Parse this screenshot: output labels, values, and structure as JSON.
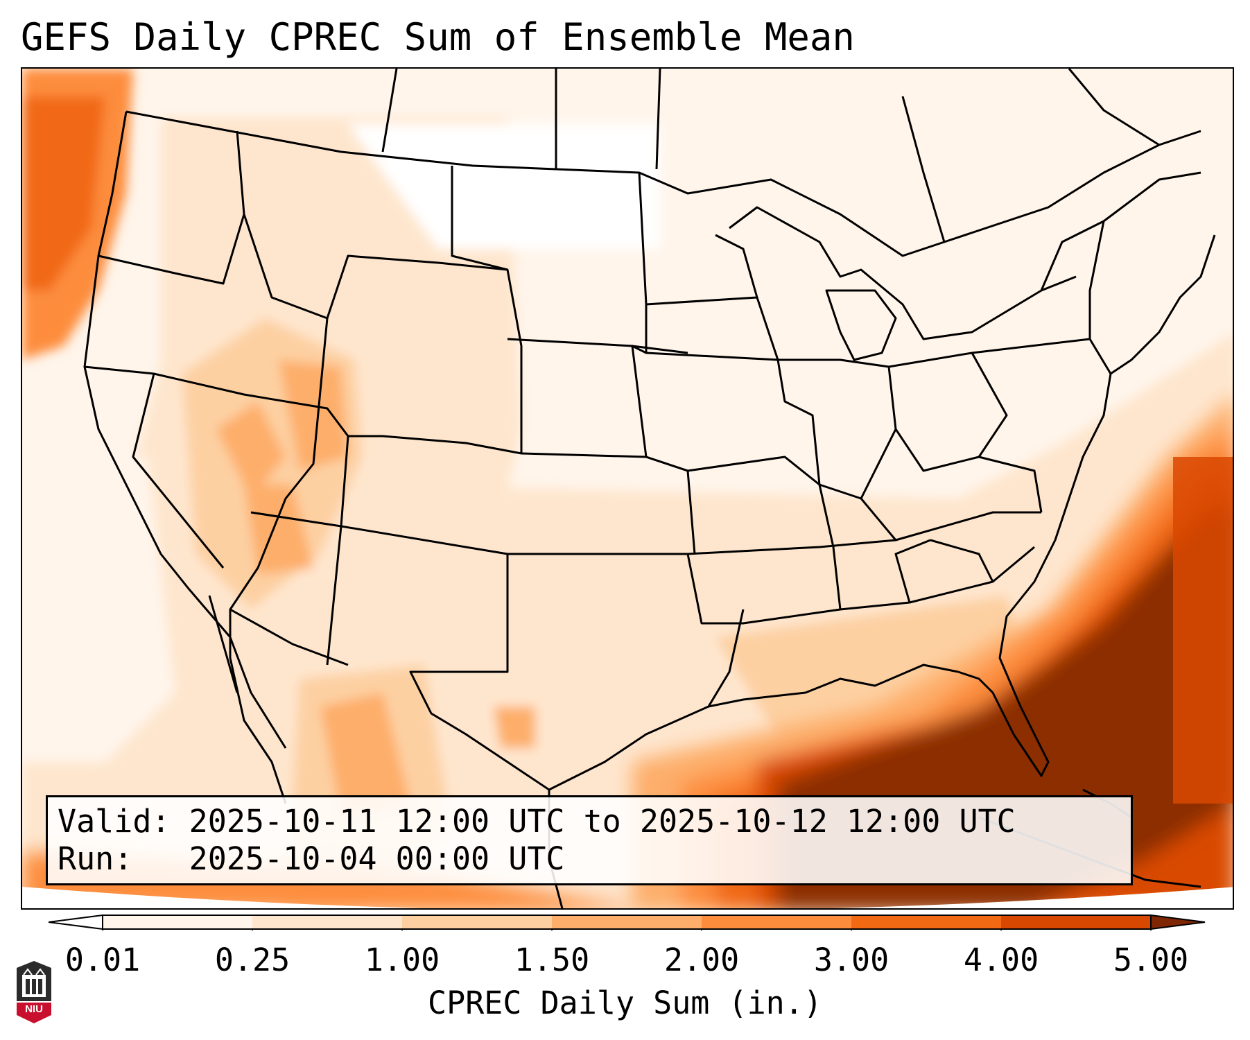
{
  "title": "GEFS Daily CPREC Sum of Ensemble Mean",
  "info": {
    "valid_label": "Valid:",
    "valid_value": "2025-10-11 12:00 UTC to 2025-10-12 12:00 UTC",
    "run_label": "Run:",
    "run_value": "2025-10-04 00:00 UTC"
  },
  "colorbar": {
    "label": "CPREC Daily Sum (in.)",
    "ticks": [
      "0.01",
      "0.25",
      "1.00",
      "1.50",
      "2.00",
      "3.00",
      "4.00",
      "5.00"
    ],
    "colors": [
      "#fff5eb",
      "#fee6ce",
      "#fdd0a2",
      "#fdae6b",
      "#fd8d3c",
      "#f16913",
      "#d94801",
      "#8c2d04"
    ],
    "under_color": "#ffffff",
    "over_color": "#7f2704"
  },
  "logo": {
    "text": "NIU"
  }
}
